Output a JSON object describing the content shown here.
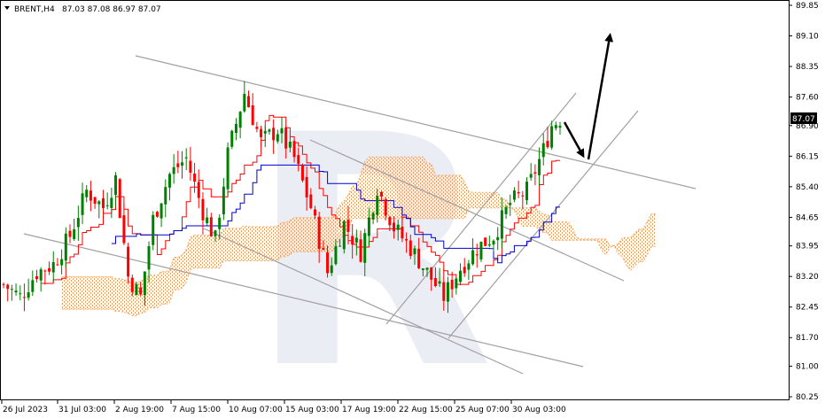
{
  "header": {
    "symbol_timeframe": "BRENT,H4",
    "ohlc": "87.03 87.08 86.97 87.07"
  },
  "watermark_text": "R",
  "chart_data": {
    "type": "candlestick",
    "title": "",
    "xlabel": "",
    "ylabel": "",
    "ylim": [
      80.1,
      90.1
    ],
    "y_ticks": [
      "89.85",
      "89.10",
      "88.35",
      "87.60",
      "86.90",
      "86.15",
      "85.40",
      "84.65",
      "83.95",
      "83.20",
      "82.45",
      "81.70",
      "81.00",
      "80.25"
    ],
    "y_tick_values": [
      89.85,
      89.1,
      88.35,
      87.6,
      86.9,
      86.15,
      85.4,
      84.65,
      83.95,
      83.2,
      82.45,
      81.7,
      81.0,
      80.25
    ],
    "x_ticks": [
      "26 Jul 2023",
      "31 Jul 03:00",
      "2 Aug 19:00",
      "7 Aug 15:00",
      "10 Aug 07:00",
      "15 Aug 03:00",
      "17 Aug 19:00",
      "22 Aug 15:00",
      "25 Aug 07:00",
      "30 Aug 03:00"
    ],
    "current_price": "87.07",
    "bull_color": "#008000",
    "bear_color": "#ff0000",
    "tenkan_color": "#ff0000",
    "kijun_color": "#0000cd",
    "kumo_color": "#f4a460",
    "trendline_color": "#a0a0a0",
    "arrow_color": "#000000"
  }
}
